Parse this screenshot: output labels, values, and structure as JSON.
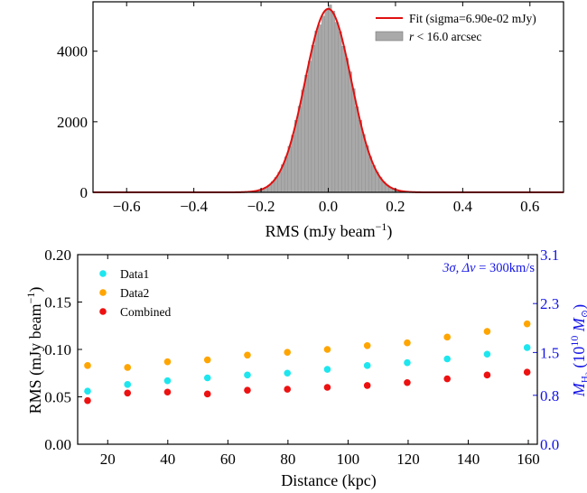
{
  "chart_data": [
    {
      "type": "histogram",
      "xlabel": "RMS (mJy beam",
      "xlabel_sup": "−1",
      "xlabel_close": ")",
      "xlim": [
        -0.7,
        0.7
      ],
      "ylim": [
        0,
        5400
      ],
      "xticks": [
        -0.6,
        -0.4,
        -0.2,
        0,
        0.2,
        0.4,
        0.6
      ],
      "xtick_labels": [
        "−0.6",
        "−0.4",
        "−0.2",
        "0.0",
        "0.2",
        "0.4",
        "0.6"
      ],
      "yticks": [
        0,
        2000,
        4000
      ],
      "ytick_labels": [
        "0",
        "2000",
        "4000"
      ],
      "histogram": {
        "name_italic": "r",
        "name_rest": " < 16.0 arcsec",
        "color": "#a9a9a9",
        "bin_width": 0.01,
        "range": [
          -0.3,
          0.3
        ],
        "peak": 5200,
        "sigma": 0.069
      },
      "fit": {
        "name": "Fit (sigma=6.90e-02 mJy)",
        "color": "#e01010",
        "amplitude": 5200,
        "sigma": 0.069,
        "mu": 0.0
      },
      "legend_position": "top-right"
    },
    {
      "type": "scatter",
      "xlabel": "Distance (kpc)",
      "ylabel": "RMS (mJy beam",
      "ylabel_sup": "−1",
      "ylabel_close": ")",
      "y2label_main": "M",
      "y2label_sub": "H",
      "y2label_subsub": "2",
      "y2label_rest": " (10",
      "y2label_exp": "10",
      "y2label_unit": " M",
      "y2label_sun": "⊙",
      "y2label_close": ")",
      "xlim": [
        10,
        163
      ],
      "ylim": [
        0,
        0.2
      ],
      "y2lim": [
        0,
        3.1
      ],
      "xticks": [
        20,
        40,
        60,
        80,
        100,
        120,
        140,
        160
      ],
      "xtick_labels": [
        "20",
        "40",
        "60",
        "80",
        "100",
        "120",
        "140",
        "160"
      ],
      "yticks": [
        0,
        0.05,
        0.1,
        0.15,
        0.2
      ],
      "ytick_labels": [
        "0.00",
        "0.05",
        "0.10",
        "0.15",
        "0.20"
      ],
      "y2ticks": [
        0,
        0.8,
        1.5,
        2.3,
        3.1
      ],
      "y2tick_labels": [
        "0.0",
        "0.8",
        "1.5",
        "2.3",
        "3.1"
      ],
      "annotation_sigma": "3σ, Δ",
      "annotation_v": "v",
      "annotation_rest": " = 300km/s",
      "x": [
        13.3,
        26.6,
        39.9,
        53.2,
        66.5,
        79.8,
        93.1,
        106.4,
        119.7,
        133.0,
        146.3,
        159.6
      ],
      "series": [
        {
          "name": "Data1",
          "color": "#1ee6ee",
          "values": [
            0.056,
            0.063,
            0.067,
            0.07,
            0.073,
            0.075,
            0.079,
            0.083,
            0.086,
            0.09,
            0.095,
            0.102
          ]
        },
        {
          "name": "Data2",
          "color": "#ffa500",
          "values": [
            0.083,
            0.081,
            0.087,
            0.089,
            0.094,
            0.097,
            0.1,
            0.104,
            0.107,
            0.113,
            0.119,
            0.127
          ]
        },
        {
          "name": "Combined",
          "color": "#ee1111",
          "values": [
            0.046,
            0.054,
            0.055,
            0.053,
            0.057,
            0.058,
            0.06,
            0.062,
            0.065,
            0.069,
            0.073,
            0.076
          ]
        }
      ],
      "legend_position": "top-left"
    }
  ]
}
